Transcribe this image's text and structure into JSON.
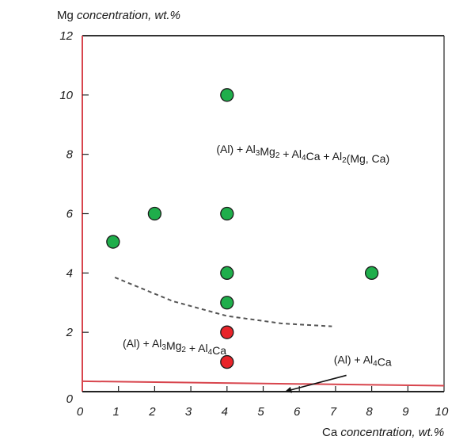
{
  "chart_data": {
    "type": "scatter",
    "title": "",
    "xlabel": {
      "prefix": "Ca",
      "italic": "concentration, wt.%"
    },
    "ylabel": {
      "prefix": "Mg",
      "italic": "concentration, wt.%"
    },
    "xlim": [
      0,
      10
    ],
    "ylim": [
      0,
      12
    ],
    "xticks": [
      "0",
      "1",
      "2",
      "3",
      "4",
      "5",
      "6",
      "7",
      "8",
      "9",
      "10"
    ],
    "yticks": [
      "0",
      "2",
      "4",
      "6",
      "8",
      "10",
      "12"
    ],
    "grid": false,
    "colors": {
      "green": "#1fae4b",
      "red": "#e8242a",
      "axis_red": "#d8454d",
      "boundary": "#555555",
      "frame": "#222222"
    },
    "series": [
      {
        "color": "green",
        "points": [
          [
            0.85,
            5.05
          ],
          [
            2,
            6
          ],
          [
            4,
            10
          ],
          [
            4,
            6
          ],
          [
            4,
            4
          ],
          [
            4,
            3
          ],
          [
            8,
            4
          ]
        ]
      },
      {
        "color": "red",
        "points": [
          [
            4,
            2
          ],
          [
            4,
            1
          ]
        ]
      }
    ],
    "boundaries": [
      {
        "style": "dashed",
        "points": [
          [
            0.9,
            3.85
          ],
          [
            2.5,
            3.05
          ],
          [
            4,
            2.55
          ],
          [
            5.5,
            2.3
          ],
          [
            6.9,
            2.2
          ]
        ]
      },
      {
        "style": "solid-red",
        "points": [
          [
            0,
            0.35
          ],
          [
            10,
            0.2
          ]
        ]
      }
    ],
    "annotations": [
      {
        "id": "region-4phase",
        "at": [
          6.1,
          8.05
        ],
        "parts": [
          {
            "t": "(Al) + Al"
          },
          {
            "t": "3",
            "sub": true
          },
          {
            "t": "Mg"
          },
          {
            "t": "2",
            "sub": true
          },
          {
            "t": " + Al"
          },
          {
            "t": "4",
            "sub": true
          },
          {
            "t": "Ca + Al"
          },
          {
            "t": "2",
            "sub": true
          },
          {
            "t": "(Mg, Ca)"
          }
        ]
      },
      {
        "id": "region-3phase",
        "at": [
          2.55,
          1.5
        ],
        "parts": [
          {
            "t": "(Al) + Al"
          },
          {
            "t": "3",
            "sub": true
          },
          {
            "t": "Mg"
          },
          {
            "t": "2",
            "sub": true
          },
          {
            "t": " + Al"
          },
          {
            "t": "4",
            "sub": true
          },
          {
            "t": "Ca"
          }
        ]
      },
      {
        "id": "region-2phase",
        "at": [
          7.75,
          0.95
        ],
        "parts": [
          {
            "t": "(Al) + Al"
          },
          {
            "t": "4",
            "sub": true
          },
          {
            "t": "Ca"
          }
        ],
        "arrow": {
          "from": [
            7.3,
            0.55
          ],
          "to": [
            5.65,
            0.02
          ]
        }
      }
    ]
  }
}
